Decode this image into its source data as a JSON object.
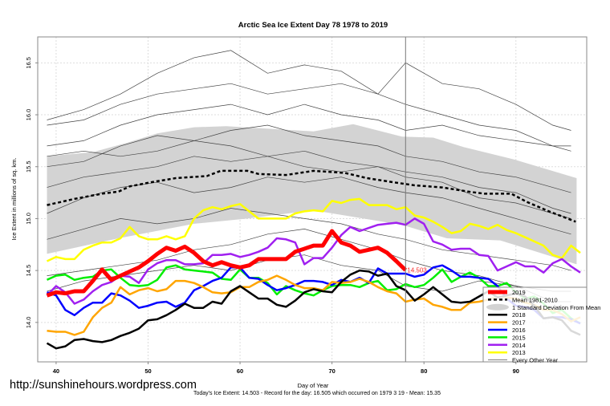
{
  "site_url": "http://sunshinehours.wordpress.com",
  "chart_data": {
    "type": "line",
    "title": "Arctic Sea Ice Extent Day 78 1978 to 2019",
    "xlabel": "Day of Year",
    "ylabel": "Ice Extent in millions of sq. km.",
    "footnote": "Today's Ice Extent: 14.503  - Record for the day: 16.505 which occurred on 1979 3 19  - Mean: 15.35",
    "xlim": [
      38,
      97.7
    ],
    "ylim": [
      13.62,
      16.75
    ],
    "x_ticks": [
      {
        "v": 40,
        "label": "40"
      },
      {
        "v": 50,
        "label": "50"
      },
      {
        "v": 60,
        "label": "60"
      },
      {
        "v": 70,
        "label": "70"
      },
      {
        "v": 80,
        "label": "80"
      },
      {
        "v": 90,
        "label": "90"
      }
    ],
    "y_ticks": [
      {
        "v": 14.0,
        "label": "14.0"
      },
      {
        "v": 14.5,
        "label": "14.5"
      },
      {
        "v": 15.0,
        "label": "15.0"
      },
      {
        "v": 15.5,
        "label": "15.5"
      },
      {
        "v": 16.0,
        "label": "16.0"
      },
      {
        "v": 16.5,
        "label": "16.5"
      }
    ],
    "grid": true,
    "current_day_marker": 78,
    "current_value_label": "14.503",
    "legend_position": "bottom-right",
    "legend": [
      {
        "label": "2019",
        "color": "#ff0000",
        "style": "thick"
      },
      {
        "label": "Mean 1981-2010",
        "color": "#000000",
        "style": "dashed"
      },
      {
        "label": "1 Standard Deviation From Mean",
        "color": "#d3d3d3",
        "style": "band"
      },
      {
        "label": "2018",
        "color": "#000000",
        "style": "solid"
      },
      {
        "label": "2017",
        "color": "#ffa500",
        "style": "solid"
      },
      {
        "label": "2016",
        "color": "#0000ff",
        "style": "solid"
      },
      {
        "label": "2015",
        "color": "#00ee00",
        "style": "solid"
      },
      {
        "label": "2014",
        "color": "#a020f0",
        "style": "solid"
      },
      {
        "label": "2013",
        "color": "#ffff00",
        "style": "solid"
      },
      {
        "label": "Every Other Year",
        "color": "#555555",
        "style": "thin"
      }
    ],
    "sd_band": {
      "color": "#d3d3d3",
      "upper": {
        "x": [
          39,
          44,
          47.7,
          51,
          55,
          58.5,
          68,
          72.3,
          77.6,
          81,
          84.3,
          89.8,
          96.6
        ],
        "y": [
          15.6,
          15.64,
          15.73,
          15.82,
          15.88,
          15.89,
          15.84,
          15.91,
          15.79,
          15.78,
          15.69,
          15.57,
          15.39
        ]
      },
      "lower": {
        "x": [
          39,
          46.8,
          55,
          60.8,
          68,
          77.6,
          82.5,
          88.3,
          96.6
        ],
        "y": [
          14.66,
          14.81,
          14.95,
          15.0,
          15.08,
          14.94,
          14.81,
          14.79,
          14.56
        ]
      }
    },
    "mean": {
      "x": [
        39,
        42,
        45,
        46.8,
        48,
        50.3,
        53,
        56.4,
        57.9,
        60.8,
        62,
        65,
        68,
        71.4,
        73.8,
        76.7,
        79,
        82,
        84.8,
        86.6,
        89.5,
        91.2,
        93.6,
        96.5
      ],
      "y": [
        15.13,
        15.19,
        15.24,
        15.26,
        15.31,
        15.35,
        15.39,
        15.41,
        15.46,
        15.46,
        15.43,
        15.42,
        15.46,
        15.44,
        15.39,
        15.35,
        15.32,
        15.3,
        15.26,
        15.24,
        15.24,
        15.16,
        15.07,
        14.97
      ]
    },
    "other_years": {
      "x": [
        39,
        43,
        47,
        51,
        55,
        59,
        63,
        67,
        71,
        75,
        78,
        82,
        86,
        90,
        94,
        96
      ],
      "series": [
        [
          15.95,
          16.05,
          16.2,
          16.4,
          16.55,
          16.62,
          16.4,
          16.48,
          16.42,
          16.2,
          16.5,
          16.3,
          16.25,
          16.1,
          15.9,
          15.85
        ],
        [
          15.9,
          15.95,
          16.1,
          16.2,
          16.25,
          16.3,
          16.2,
          16.25,
          16.3,
          16.2,
          16.1,
          16.0,
          15.9,
          15.85,
          15.7,
          15.7
        ],
        [
          15.7,
          15.75,
          15.9,
          16.0,
          16.05,
          16.1,
          16.0,
          16.1,
          16.0,
          15.95,
          15.85,
          15.9,
          15.8,
          15.75,
          15.7,
          15.65
        ],
        [
          15.6,
          15.65,
          15.6,
          15.65,
          15.75,
          15.7,
          15.6,
          15.65,
          15.55,
          15.5,
          15.45,
          15.4,
          15.3,
          15.25,
          15.1,
          15.05
        ],
        [
          15.5,
          15.55,
          15.7,
          15.8,
          15.75,
          15.85,
          15.9,
          15.8,
          15.75,
          15.7,
          15.6,
          15.55,
          15.45,
          15.4,
          15.3,
          15.25
        ],
        [
          15.3,
          15.4,
          15.45,
          15.5,
          15.6,
          15.55,
          15.6,
          15.5,
          15.45,
          15.5,
          15.4,
          15.35,
          15.2,
          15.15,
          15.05,
          15.0
        ],
        [
          15.05,
          15.2,
          15.3,
          15.35,
          15.25,
          15.3,
          15.4,
          15.35,
          15.4,
          15.3,
          15.25,
          15.2,
          15.1,
          15.0,
          14.9,
          14.85
        ],
        [
          14.8,
          14.9,
          15.0,
          14.95,
          15.0,
          15.1,
          15.05,
          15.0,
          14.95,
          14.85,
          14.8,
          14.7,
          14.65,
          14.6,
          14.55,
          14.5
        ],
        [
          14.45,
          14.5,
          14.55,
          14.6,
          14.7,
          14.75,
          14.85,
          14.9,
          14.8,
          14.7,
          14.6,
          14.5,
          14.45,
          14.35,
          14.3,
          14.3
        ],
        [
          14.3,
          14.4,
          14.45,
          14.5,
          14.55,
          14.5,
          14.6,
          14.65,
          14.55,
          14.5,
          14.35,
          14.3,
          14.4,
          14.35,
          14.2,
          14.2
        ]
      ]
    },
    "series": [
      {
        "name": "2013",
        "color": "#ffff00",
        "start_day": 39,
        "values": [
          14.59,
          14.63,
          14.61,
          14.61,
          14.7,
          14.74,
          14.77,
          14.77,
          14.81,
          14.92,
          14.83,
          14.8,
          14.8,
          14.83,
          14.8,
          14.83,
          15.0,
          15.08,
          15.11,
          15.09,
          15.12,
          15.14,
          15.07,
          15.0,
          15.0,
          15.0,
          15.0,
          15.05,
          15.07,
          15.08,
          15.07,
          15.17,
          15.15,
          15.18,
          15.19,
          15.13,
          15.13,
          15.13,
          15.09,
          15.11,
          15.03,
          15.01,
          14.97,
          14.92,
          14.86,
          14.88,
          14.95,
          14.93,
          14.9,
          14.94,
          14.89,
          14.86,
          14.82,
          14.78,
          14.74,
          14.65,
          14.62,
          14.74,
          14.67
        ]
      },
      {
        "name": "2014",
        "color": "#a020f0",
        "start_day": 39,
        "values": [
          14.26,
          14.35,
          14.29,
          14.18,
          14.22,
          14.3,
          14.36,
          14.39,
          14.45,
          14.44,
          14.38,
          14.51,
          14.57,
          14.6,
          14.6,
          14.56,
          14.56,
          14.57,
          14.65,
          14.65,
          14.66,
          14.63,
          14.65,
          14.68,
          14.72,
          14.81,
          14.8,
          14.77,
          14.56,
          14.62,
          14.62,
          14.72,
          14.84,
          14.92,
          14.88,
          14.91,
          14.94,
          14.95,
          14.96,
          14.94,
          15.0,
          14.95,
          14.78,
          14.75,
          14.7,
          14.71,
          14.71,
          14.65,
          14.64,
          14.5,
          14.54,
          14.58,
          14.54,
          14.54,
          14.48,
          14.57,
          14.61,
          14.54,
          14.48
        ]
      },
      {
        "name": "2015",
        "color": "#00ee00",
        "start_day": 39,
        "values": [
          14.41,
          14.45,
          14.46,
          14.41,
          14.43,
          14.44,
          14.5,
          14.51,
          14.43,
          14.36,
          14.35,
          14.36,
          14.41,
          14.53,
          14.55,
          14.51,
          14.5,
          14.49,
          14.48,
          14.42,
          14.41,
          14.51,
          14.43,
          14.43,
          14.38,
          14.27,
          14.35,
          14.31,
          14.28,
          14.26,
          14.31,
          14.35,
          14.36,
          14.36,
          14.34,
          14.38,
          14.4,
          14.31,
          14.32,
          14.37,
          14.34,
          14.36,
          14.43,
          14.51,
          14.39,
          14.44,
          14.48,
          14.43,
          14.35,
          14.35,
          14.38,
          14.29,
          14.23,
          14.25,
          14.18,
          14.09,
          14.12,
          14.04,
          13.99
        ]
      },
      {
        "name": "2016",
        "color": "#0000ff",
        "start_day": 39,
        "values": [
          14.29,
          14.26,
          14.12,
          14.07,
          14.14,
          14.19,
          14.19,
          14.28,
          14.26,
          14.21,
          14.14,
          14.16,
          14.19,
          14.2,
          14.15,
          14.19,
          14.31,
          14.35,
          14.4,
          14.43,
          14.53,
          14.53,
          14.43,
          14.42,
          14.36,
          14.31,
          14.33,
          14.36,
          14.4,
          14.4,
          14.39,
          14.36,
          14.41,
          14.39,
          14.43,
          14.38,
          14.52,
          14.47,
          14.47,
          14.47,
          14.44,
          14.46,
          14.53,
          14.55,
          14.5,
          14.44,
          14.44,
          14.43,
          14.42,
          14.35,
          14.23,
          14.16,
          14.15,
          14.12,
          14.04,
          14.05,
          14.05,
          14.03,
          13.99
        ]
      },
      {
        "name": "2017",
        "color": "#ffa500",
        "start_day": 39,
        "values": [
          13.92,
          13.91,
          13.91,
          13.88,
          13.91,
          14.05,
          14.14,
          14.19,
          14.34,
          14.27,
          14.31,
          14.33,
          14.3,
          14.32,
          14.4,
          14.4,
          14.38,
          14.34,
          14.29,
          14.28,
          14.29,
          14.34,
          14.34,
          14.39,
          14.41,
          14.45,
          14.41,
          14.36,
          14.33,
          14.33,
          14.31,
          14.39,
          14.38,
          14.39,
          14.42,
          14.39,
          14.34,
          14.3,
          14.28,
          14.2,
          14.22,
          14.23,
          14.17,
          14.15,
          14.12,
          14.12,
          14.19,
          14.2,
          14.22,
          14.25,
          14.24,
          14.23,
          14.19,
          14.17,
          14.12,
          14.12,
          14.08,
          14.01,
          14.05
        ]
      },
      {
        "name": "2018",
        "color": "#000000",
        "start_day": 39,
        "values": [
          13.8,
          13.75,
          13.77,
          13.83,
          13.84,
          13.82,
          13.81,
          13.83,
          13.87,
          13.9,
          13.94,
          14.02,
          14.03,
          14.07,
          14.12,
          14.18,
          14.14,
          14.14,
          14.2,
          14.18,
          14.3,
          14.35,
          14.29,
          14.23,
          14.23,
          14.17,
          14.15,
          14.21,
          14.29,
          14.32,
          14.3,
          14.29,
          14.39,
          14.46,
          14.5,
          14.49,
          14.45,
          14.47,
          14.35,
          14.31,
          14.21,
          14.27,
          14.34,
          14.27,
          14.2,
          14.19,
          14.2,
          14.25,
          14.3,
          14.24,
          14.26,
          14.28,
          14.25,
          14.16,
          14.04,
          14.05,
          14.02,
          13.92,
          13.88
        ]
      },
      {
        "name": "2019",
        "color": "#ff0000",
        "start_day": 39,
        "thick": true,
        "values": [
          14.26,
          14.29,
          14.28,
          14.3,
          14.3,
          14.4,
          14.51,
          14.41,
          14.45,
          14.49,
          14.53,
          14.59,
          14.66,
          14.72,
          14.69,
          14.73,
          14.67,
          14.59,
          14.55,
          14.58,
          14.55,
          14.53,
          14.55,
          14.61,
          14.61,
          14.61,
          14.61,
          14.68,
          14.71,
          14.74,
          14.74,
          14.88,
          14.77,
          14.74,
          14.68,
          14.7,
          14.72,
          14.67,
          14.59,
          14.503
        ]
      }
    ]
  }
}
